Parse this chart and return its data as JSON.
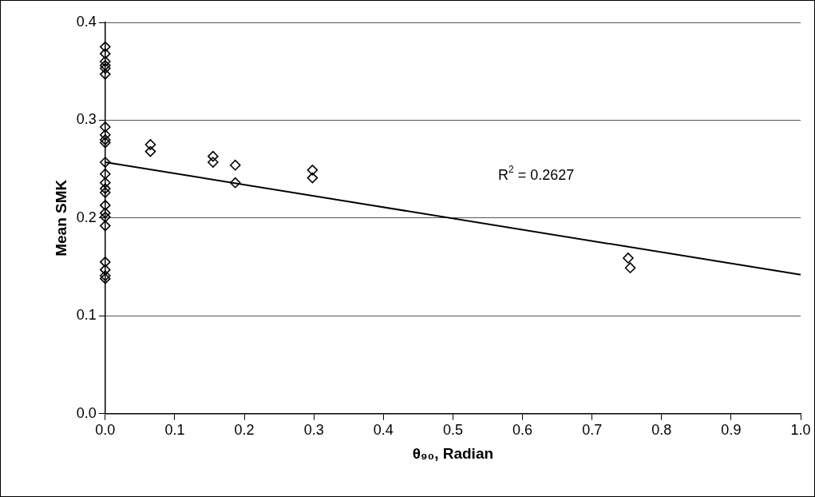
{
  "chart_data": {
    "type": "scatter",
    "xlabel": "θ₉₀, Radian",
    "ylabel": "Mean SMK",
    "annotations": [
      "R$^{2}$ = 0.2627"
    ],
    "xlim": [
      0,
      1
    ],
    "ylim": [
      0,
      0.4
    ],
    "xticks": [
      {
        "value": 0,
        "label": "0.0"
      },
      {
        "value": 0.1,
        "label": "0.1"
      },
      {
        "value": 0.2,
        "label": "0.2"
      },
      {
        "value": 0.3,
        "label": "0.3"
      },
      {
        "value": 0.4,
        "label": "0.4"
      },
      {
        "value": 0.5,
        "label": "0.5"
      },
      {
        "value": 0.6,
        "label": "0.6"
      },
      {
        "value": 0.7,
        "label": "0.7"
      },
      {
        "value": 0.8,
        "label": "0.8"
      },
      {
        "value": 0.9,
        "label": "0.9"
      },
      {
        "value": 1,
        "label": "1.0"
      }
    ],
    "yticks": [
      {
        "value": 0,
        "label": "0.0"
      },
      {
        "value": 0.1,
        "label": "0.1"
      },
      {
        "value": 0.2,
        "label": "0.2"
      },
      {
        "value": 0.3,
        "label": "0.3"
      },
      {
        "value": 0.4,
        "label": "0.4"
      }
    ],
    "grid": "y",
    "legend": false,
    "marker": "diamond",
    "series": [
      {
        "type": "scatter",
        "color": "#000000",
        "x": [
          0,
          0,
          0,
          0,
          0,
          0,
          0,
          0,
          0,
          0,
          0,
          0,
          0,
          0,
          0,
          0,
          0,
          0,
          0,
          0,
          0,
          0,
          0,
          0.065,
          0.065,
          0.155,
          0.155,
          0.187,
          0.187,
          0.298,
          0.298,
          0.752,
          0.755
        ],
        "values": [
          0.375,
          0.368,
          0.36,
          0.356,
          0.353,
          0.347,
          0.293,
          0.285,
          0.28,
          0.277,
          0.257,
          0.245,
          0.236,
          0.23,
          0.226,
          0.213,
          0.205,
          0.201,
          0.192,
          0.155,
          0.147,
          0.141,
          0.138,
          0.275,
          0.268,
          0.263,
          0.257,
          0.254,
          0.236,
          0.249,
          0.241,
          0.159,
          0.149
        ]
      },
      {
        "type": "line",
        "color": "#000000",
        "x": [
          0,
          1
        ],
        "values": [
          0.257,
          0.142
        ],
        "marker": "none",
        "line_style": "solid"
      }
    ]
  }
}
